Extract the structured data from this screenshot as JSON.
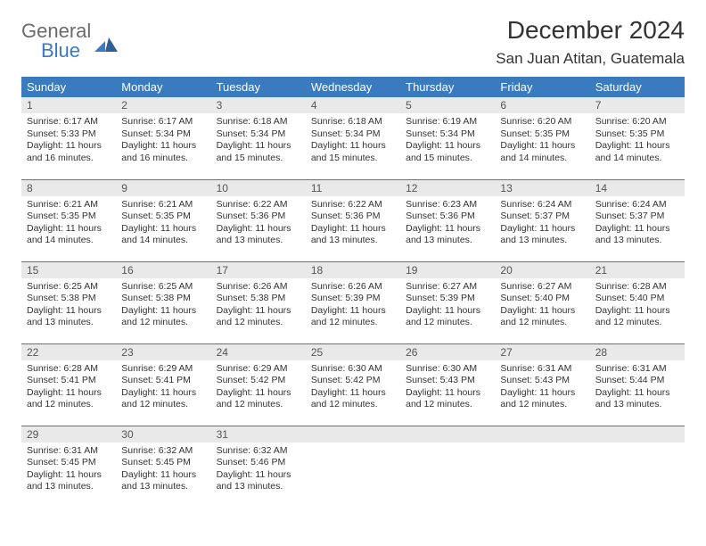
{
  "brand": {
    "general": "General",
    "blue": "Blue"
  },
  "header": {
    "month_title": "December 2024",
    "location": "San Juan Atitan, Guatemala"
  },
  "colors": {
    "header_blue": "#3a7bbf",
    "daynum_bg": "#e9e9e9",
    "text": "#333333",
    "logo_gray": "#6b6b6b",
    "background": "#ffffff"
  },
  "weekdays": [
    "Sunday",
    "Monday",
    "Tuesday",
    "Wednesday",
    "Thursday",
    "Friday",
    "Saturday"
  ],
  "days": [
    {
      "n": "1",
      "sunrise": "6:17 AM",
      "sunset": "5:33 PM",
      "daylight": "11 hours and 16 minutes."
    },
    {
      "n": "2",
      "sunrise": "6:17 AM",
      "sunset": "5:34 PM",
      "daylight": "11 hours and 16 minutes."
    },
    {
      "n": "3",
      "sunrise": "6:18 AM",
      "sunset": "5:34 PM",
      "daylight": "11 hours and 15 minutes."
    },
    {
      "n": "4",
      "sunrise": "6:18 AM",
      "sunset": "5:34 PM",
      "daylight": "11 hours and 15 minutes."
    },
    {
      "n": "5",
      "sunrise": "6:19 AM",
      "sunset": "5:34 PM",
      "daylight": "11 hours and 15 minutes."
    },
    {
      "n": "6",
      "sunrise": "6:20 AM",
      "sunset": "5:35 PM",
      "daylight": "11 hours and 14 minutes."
    },
    {
      "n": "7",
      "sunrise": "6:20 AM",
      "sunset": "5:35 PM",
      "daylight": "11 hours and 14 minutes."
    },
    {
      "n": "8",
      "sunrise": "6:21 AM",
      "sunset": "5:35 PM",
      "daylight": "11 hours and 14 minutes."
    },
    {
      "n": "9",
      "sunrise": "6:21 AM",
      "sunset": "5:35 PM",
      "daylight": "11 hours and 14 minutes."
    },
    {
      "n": "10",
      "sunrise": "6:22 AM",
      "sunset": "5:36 PM",
      "daylight": "11 hours and 13 minutes."
    },
    {
      "n": "11",
      "sunrise": "6:22 AM",
      "sunset": "5:36 PM",
      "daylight": "11 hours and 13 minutes."
    },
    {
      "n": "12",
      "sunrise": "6:23 AM",
      "sunset": "5:36 PM",
      "daylight": "11 hours and 13 minutes."
    },
    {
      "n": "13",
      "sunrise": "6:24 AM",
      "sunset": "5:37 PM",
      "daylight": "11 hours and 13 minutes."
    },
    {
      "n": "14",
      "sunrise": "6:24 AM",
      "sunset": "5:37 PM",
      "daylight": "11 hours and 13 minutes."
    },
    {
      "n": "15",
      "sunrise": "6:25 AM",
      "sunset": "5:38 PM",
      "daylight": "11 hours and 13 minutes."
    },
    {
      "n": "16",
      "sunrise": "6:25 AM",
      "sunset": "5:38 PM",
      "daylight": "11 hours and 12 minutes."
    },
    {
      "n": "17",
      "sunrise": "6:26 AM",
      "sunset": "5:38 PM",
      "daylight": "11 hours and 12 minutes."
    },
    {
      "n": "18",
      "sunrise": "6:26 AM",
      "sunset": "5:39 PM",
      "daylight": "11 hours and 12 minutes."
    },
    {
      "n": "19",
      "sunrise": "6:27 AM",
      "sunset": "5:39 PM",
      "daylight": "11 hours and 12 minutes."
    },
    {
      "n": "20",
      "sunrise": "6:27 AM",
      "sunset": "5:40 PM",
      "daylight": "11 hours and 12 minutes."
    },
    {
      "n": "21",
      "sunrise": "6:28 AM",
      "sunset": "5:40 PM",
      "daylight": "11 hours and 12 minutes."
    },
    {
      "n": "22",
      "sunrise": "6:28 AM",
      "sunset": "5:41 PM",
      "daylight": "11 hours and 12 minutes."
    },
    {
      "n": "23",
      "sunrise": "6:29 AM",
      "sunset": "5:41 PM",
      "daylight": "11 hours and 12 minutes."
    },
    {
      "n": "24",
      "sunrise": "6:29 AM",
      "sunset": "5:42 PM",
      "daylight": "11 hours and 12 minutes."
    },
    {
      "n": "25",
      "sunrise": "6:30 AM",
      "sunset": "5:42 PM",
      "daylight": "11 hours and 12 minutes."
    },
    {
      "n": "26",
      "sunrise": "6:30 AM",
      "sunset": "5:43 PM",
      "daylight": "11 hours and 12 minutes."
    },
    {
      "n": "27",
      "sunrise": "6:31 AM",
      "sunset": "5:43 PM",
      "daylight": "11 hours and 12 minutes."
    },
    {
      "n": "28",
      "sunrise": "6:31 AM",
      "sunset": "5:44 PM",
      "daylight": "11 hours and 13 minutes."
    },
    {
      "n": "29",
      "sunrise": "6:31 AM",
      "sunset": "5:45 PM",
      "daylight": "11 hours and 13 minutes."
    },
    {
      "n": "30",
      "sunrise": "6:32 AM",
      "sunset": "5:45 PM",
      "daylight": "11 hours and 13 minutes."
    },
    {
      "n": "31",
      "sunrise": "6:32 AM",
      "sunset": "5:46 PM",
      "daylight": "11 hours and 13 minutes."
    }
  ],
  "labels": {
    "sunrise": "Sunrise: ",
    "sunset": "Sunset: ",
    "daylight": "Daylight: "
  },
  "layout": {
    "first_weekday_index": 0,
    "trailing_empty": 4
  }
}
